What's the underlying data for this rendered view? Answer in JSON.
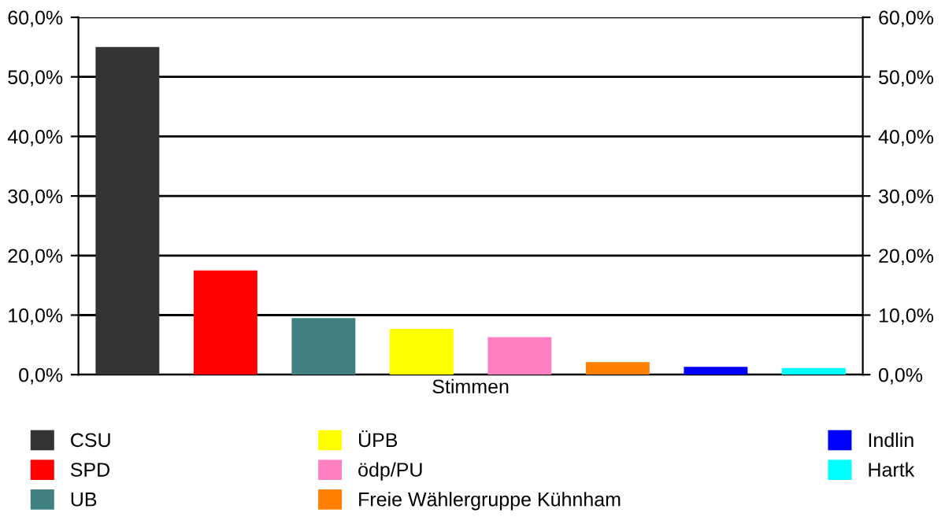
{
  "chart_data": {
    "type": "bar",
    "categories": [
      "Stimmen"
    ],
    "series": [
      {
        "name": "CSU",
        "color": "#333333",
        "values": [
          55.0
        ]
      },
      {
        "name": "SPD",
        "color": "#ff0000",
        "values": [
          17.5
        ]
      },
      {
        "name": "UB",
        "color": "#408080",
        "values": [
          9.5
        ]
      },
      {
        "name": "ÜPB",
        "color": "#ffff00",
        "values": [
          7.7
        ]
      },
      {
        "name": "ödp/PU",
        "color": "#ff80c0",
        "values": [
          6.3
        ]
      },
      {
        "name": "Freie Wählergruppe Kühnham",
        "color": "#ff8000",
        "values": [
          2.1
        ]
      },
      {
        "name": "Indlin",
        "color": "#0000ff",
        "values": [
          1.3
        ]
      },
      {
        "name": "Hartk",
        "color": "#00ffff",
        "values": [
          1.1
        ]
      }
    ],
    "ylim": [
      0,
      60
    ],
    "yticks": [
      {
        "value": 0,
        "label": "0,0%"
      },
      {
        "value": 10,
        "label": "10,0%"
      },
      {
        "value": 20,
        "label": "20,0%"
      },
      {
        "value": 30,
        "label": "30,0%"
      },
      {
        "value": 40,
        "label": "40,0%"
      },
      {
        "value": 50,
        "label": "50,0%"
      },
      {
        "value": 60,
        "label": "60,0%"
      }
    ],
    "grid": "y",
    "legend": "bottom"
  }
}
